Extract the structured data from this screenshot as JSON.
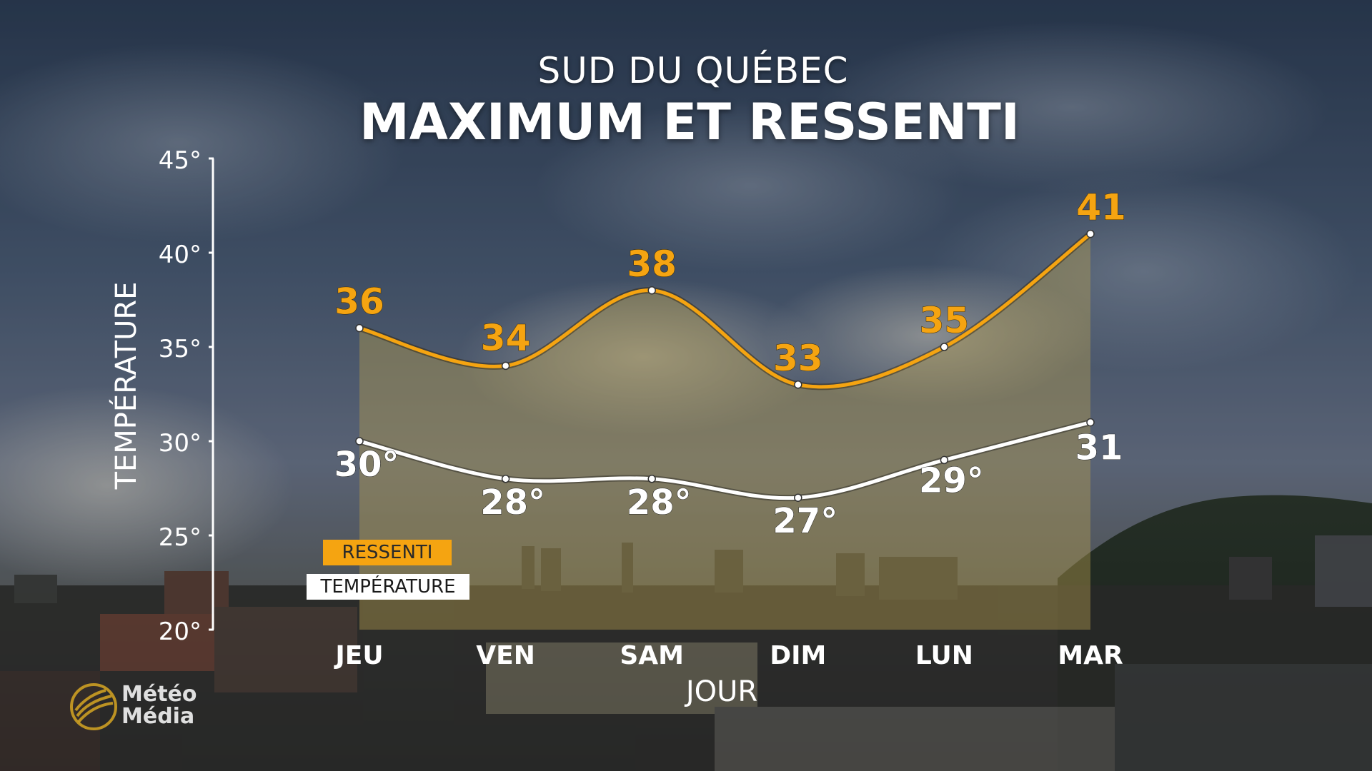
{
  "header": {
    "subtitle": "SUD DU QUÉBEC",
    "title": "MAXIMUM ET RESSENTI"
  },
  "legend": {
    "ressenti": "RESSENTI",
    "temperature": "TEMPÉRATURE"
  },
  "logo": {
    "line1": "Météo",
    "line2": "Média"
  },
  "colors": {
    "ressenti": "#f5a411",
    "temperature": "#ffffff",
    "fill": "#b49d4f"
  },
  "chart_data": {
    "type": "line",
    "title": "MAXIMUM ET RESSENTI",
    "subtitle": "SUD DU QUÉBEC",
    "xlabel": "JOUR",
    "ylabel": "TEMPÉRATURE",
    "categories": [
      "JEU",
      "VEN",
      "SAM",
      "DIM",
      "LUN",
      "MAR"
    ],
    "ylim": [
      20,
      45
    ],
    "yticks": [
      20,
      25,
      30,
      35,
      40,
      45
    ],
    "ytick_labels": [
      "20°",
      "25°",
      "30°",
      "35°",
      "40°",
      "45°"
    ],
    "grid": false,
    "series": [
      {
        "name": "RESSENTI",
        "values": [
          36,
          34,
          38,
          33,
          35,
          41
        ],
        "labels": [
          "36",
          "34",
          "38",
          "33",
          "35",
          "41"
        ]
      },
      {
        "name": "TEMPÉRATURE",
        "values": [
          30,
          28,
          28,
          27,
          29,
          31
        ],
        "labels": [
          "30°",
          "28°",
          "28°",
          "27°",
          "29°",
          "31"
        ]
      }
    ]
  }
}
